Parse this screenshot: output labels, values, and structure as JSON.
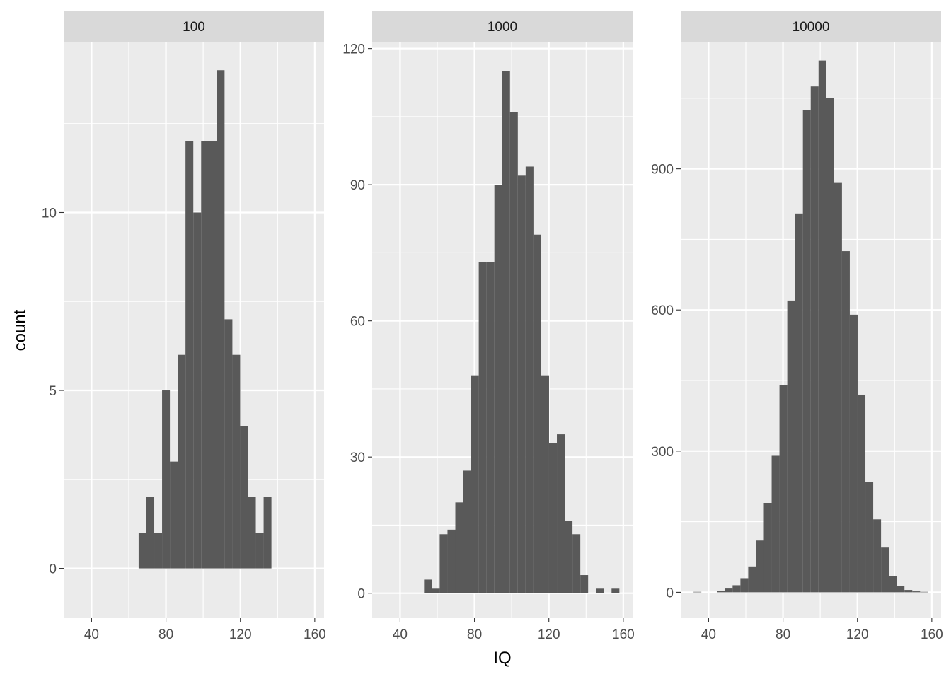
{
  "chart_data": {
    "type": "bar",
    "xlabel": "IQ",
    "ylabel": "count",
    "colors": {
      "panel_bg": "#ebebeb",
      "strip_bg": "#d9d9d9",
      "bar_fill": "#595959",
      "grid": "#ffffff"
    },
    "x_ticks": [
      40,
      80,
      120,
      160
    ],
    "xlim": [
      25,
      165
    ],
    "bin_width": 4.2,
    "facets": [
      {
        "strip_label": "100",
        "ylim": [
          -1.4,
          14.8
        ],
        "y_ticks": [
          0,
          5,
          10
        ],
        "bins": [
          {
            "x": 67.4,
            "count": 1
          },
          {
            "x": 71.6,
            "count": 2
          },
          {
            "x": 75.8,
            "count": 1
          },
          {
            "x": 80.0,
            "count": 5
          },
          {
            "x": 84.2,
            "count": 3
          },
          {
            "x": 88.4,
            "count": 6
          },
          {
            "x": 92.6,
            "count": 12
          },
          {
            "x": 96.8,
            "count": 10
          },
          {
            "x": 101.0,
            "count": 12
          },
          {
            "x": 105.2,
            "count": 12
          },
          {
            "x": 109.4,
            "count": 14
          },
          {
            "x": 113.6,
            "count": 7
          },
          {
            "x": 117.8,
            "count": 6
          },
          {
            "x": 122.0,
            "count": 4
          },
          {
            "x": 126.2,
            "count": 2
          },
          {
            "x": 130.4,
            "count": 1
          },
          {
            "x": 134.6,
            "count": 2
          }
        ]
      },
      {
        "strip_label": "1000",
        "ylim": [
          -5.5,
          121.5
        ],
        "y_ticks": [
          0,
          30,
          60,
          90,
          120
        ],
        "bins": [
          {
            "x": 55.0,
            "count": 3
          },
          {
            "x": 59.2,
            "count": 1
          },
          {
            "x": 63.4,
            "count": 13
          },
          {
            "x": 67.6,
            "count": 14
          },
          {
            "x": 71.8,
            "count": 20
          },
          {
            "x": 76.0,
            "count": 27
          },
          {
            "x": 80.2,
            "count": 48
          },
          {
            "x": 84.4,
            "count": 73
          },
          {
            "x": 88.6,
            "count": 73
          },
          {
            "x": 92.8,
            "count": 90
          },
          {
            "x": 97.0,
            "count": 115
          },
          {
            "x": 101.2,
            "count": 106
          },
          {
            "x": 105.4,
            "count": 92
          },
          {
            "x": 109.6,
            "count": 94
          },
          {
            "x": 113.8,
            "count": 79
          },
          {
            "x": 118.0,
            "count": 48
          },
          {
            "x": 122.2,
            "count": 33
          },
          {
            "x": 126.4,
            "count": 35
          },
          {
            "x": 130.6,
            "count": 16
          },
          {
            "x": 134.8,
            "count": 13
          },
          {
            "x": 139.0,
            "count": 4
          },
          {
            "x": 143.2,
            "count": 0
          },
          {
            "x": 147.4,
            "count": 1
          },
          {
            "x": 151.6,
            "count": 0
          },
          {
            "x": 155.8,
            "count": 1
          }
        ]
      },
      {
        "strip_label": "10000",
        "ylim": [
          -55,
          1170
        ],
        "y_ticks": [
          0,
          300,
          600,
          900
        ],
        "bins": [
          {
            "x": 34.0,
            "count": 1
          },
          {
            "x": 38.2,
            "count": 0
          },
          {
            "x": 42.4,
            "count": 0
          },
          {
            "x": 46.6,
            "count": 3
          },
          {
            "x": 50.8,
            "count": 8
          },
          {
            "x": 55.0,
            "count": 15
          },
          {
            "x": 59.2,
            "count": 30
          },
          {
            "x": 63.4,
            "count": 55
          },
          {
            "x": 67.6,
            "count": 110
          },
          {
            "x": 71.8,
            "count": 190
          },
          {
            "x": 76.0,
            "count": 290
          },
          {
            "x": 80.2,
            "count": 440
          },
          {
            "x": 84.4,
            "count": 620
          },
          {
            "x": 88.6,
            "count": 805
          },
          {
            "x": 92.8,
            "count": 1025
          },
          {
            "x": 97.0,
            "count": 1075
          },
          {
            "x": 101.2,
            "count": 1130
          },
          {
            "x": 105.4,
            "count": 1050
          },
          {
            "x": 109.6,
            "count": 870
          },
          {
            "x": 113.8,
            "count": 725
          },
          {
            "x": 118.0,
            "count": 590
          },
          {
            "x": 122.2,
            "count": 420
          },
          {
            "x": 126.4,
            "count": 235
          },
          {
            "x": 130.6,
            "count": 155
          },
          {
            "x": 134.8,
            "count": 95
          },
          {
            "x": 139.0,
            "count": 35
          },
          {
            "x": 143.2,
            "count": 13
          },
          {
            "x": 147.4,
            "count": 5
          },
          {
            "x": 151.6,
            "count": 2
          },
          {
            "x": 155.8,
            "count": 1
          }
        ]
      }
    ]
  }
}
